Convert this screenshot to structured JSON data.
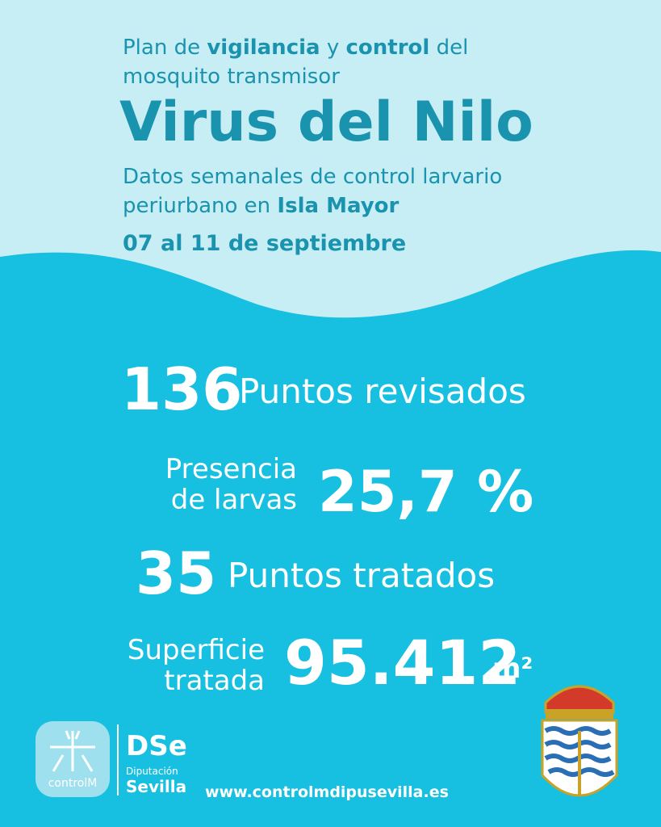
{
  "header": {
    "line1": [
      "Plan de ",
      "vigilancia",
      " y ",
      "control",
      " del"
    ],
    "line2": "mosquito transmisor",
    "title": "Virus del Nilo",
    "subtitle1": "Datos semanales de control larvario",
    "subtitle2": [
      "periurbano en ",
      "Isla Mayor"
    ],
    "date": "07 al 11 de septiembre"
  },
  "stats": [
    {
      "value": "136",
      "label": "Puntos revisados"
    },
    {
      "label": [
        "Presencia",
        "de larvas"
      ],
      "value": "25,7 %"
    },
    {
      "value": "35",
      "label": "Puntos tratados"
    },
    {
      "label": [
        "Superficie",
        "tratada"
      ],
      "value": "95.412",
      "unit": "m²"
    }
  ],
  "footer": {
    "logo1": "controlM",
    "logo2": [
      "Diputación",
      "Sevilla"
    ],
    "url": "www.controlmdipusevilla.es"
  }
}
